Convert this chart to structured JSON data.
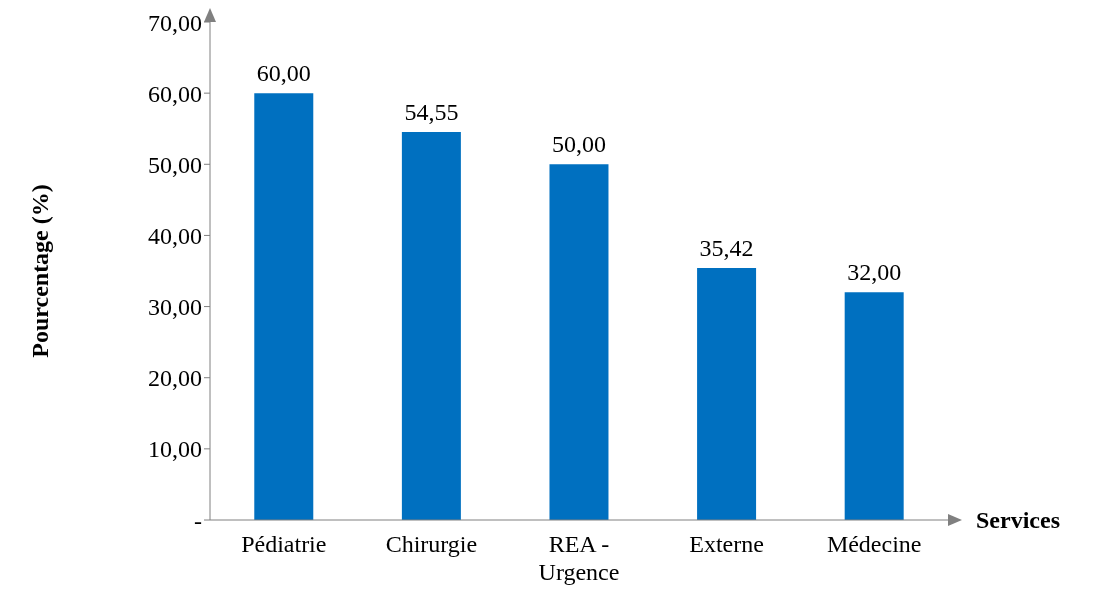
{
  "chart_data": {
    "type": "bar",
    "xlabel": "Services",
    "ylabel": "Pourcentage (%)",
    "categories": [
      "Pédiatrie",
      "Chirurgie",
      "REA - Urgence",
      "Externe",
      "Médecine"
    ],
    "values": [
      60,
      54.55,
      50,
      35.42,
      32
    ],
    "value_labels": [
      "60,00",
      "54,55",
      "50,00",
      "35,42",
      "32,00"
    ],
    "color": "#0070c0",
    "ylim": [
      0,
      70
    ],
    "yticks": [
      {
        "value": 0,
        "label": "-"
      },
      {
        "value": 10,
        "label": "10,00"
      },
      {
        "value": 20,
        "label": "20,00"
      },
      {
        "value": 30,
        "label": "30,00"
      },
      {
        "value": 40,
        "label": "40,00"
      },
      {
        "value": 50,
        "label": "50,00"
      },
      {
        "value": 60,
        "label": "60,00"
      },
      {
        "value": 70,
        "label": "70,00"
      }
    ],
    "grid": false,
    "legend": false
  }
}
